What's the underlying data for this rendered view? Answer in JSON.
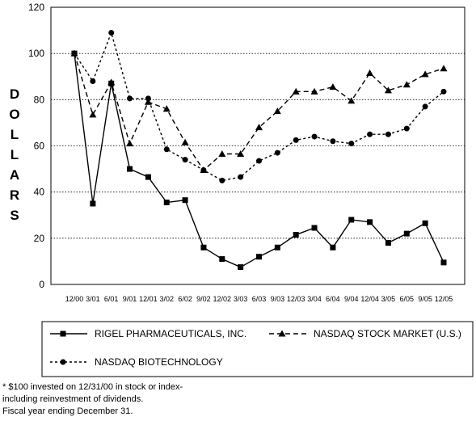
{
  "chart_data": {
    "type": "line",
    "title": "",
    "xlabel": "",
    "ylabel": "DOLLARS",
    "ylim": [
      0,
      120
    ],
    "yticks": [
      0,
      20,
      40,
      60,
      80,
      100,
      120
    ],
    "grid": "horizontal dotted",
    "legend_position": "bottom",
    "categories": [
      "12/00",
      "3/01",
      "6/01",
      "9/01",
      "12/01",
      "3/02",
      "6/02",
      "9/02",
      "12/02",
      "3/03",
      "6/03",
      "9/03",
      "12/03",
      "3/04",
      "6/04",
      "9/04",
      "12/04",
      "3/05",
      "6/05",
      "9/05",
      "12/05"
    ],
    "series": [
      {
        "name": "RIGEL PHARMACEUTICALS, INC.",
        "style": "solid",
        "marker": "square",
        "color": "#000000",
        "values": [
          100,
          35,
          87,
          50,
          46.5,
          35.5,
          36.5,
          16,
          11,
          7.5,
          12,
          16,
          21.5,
          24.5,
          16,
          28,
          27,
          18,
          22,
          26.5,
          9.5
        ]
      },
      {
        "name": "NASDAQ STOCK MARKET (U.S.)",
        "style": "dashed",
        "marker": "triangle",
        "color": "#000000",
        "values": [
          100,
          73.5,
          87.5,
          61,
          79,
          76,
          61.5,
          49.5,
          56.5,
          56.5,
          68,
          75,
          83.5,
          83.5,
          85.5,
          79.5,
          91.5,
          84,
          86.5,
          91,
          93.5
        ]
      },
      {
        "name": "NASDAQ BIOTECHNOLOGY",
        "style": "dotted",
        "marker": "circle",
        "color": "#000000",
        "values": [
          100,
          88,
          109,
          80.5,
          80.5,
          58.5,
          54,
          49.5,
          45,
          46.5,
          53.5,
          57,
          62.5,
          64,
          62,
          61,
          65,
          65,
          67.5,
          77,
          83.5
        ]
      }
    ]
  },
  "footnote": {
    "line1": "* $100 invested on 12/31/00 in stock or index-",
    "line2": "including reinvestment of dividends.",
    "line3": "Fiscal year ending December 31."
  }
}
